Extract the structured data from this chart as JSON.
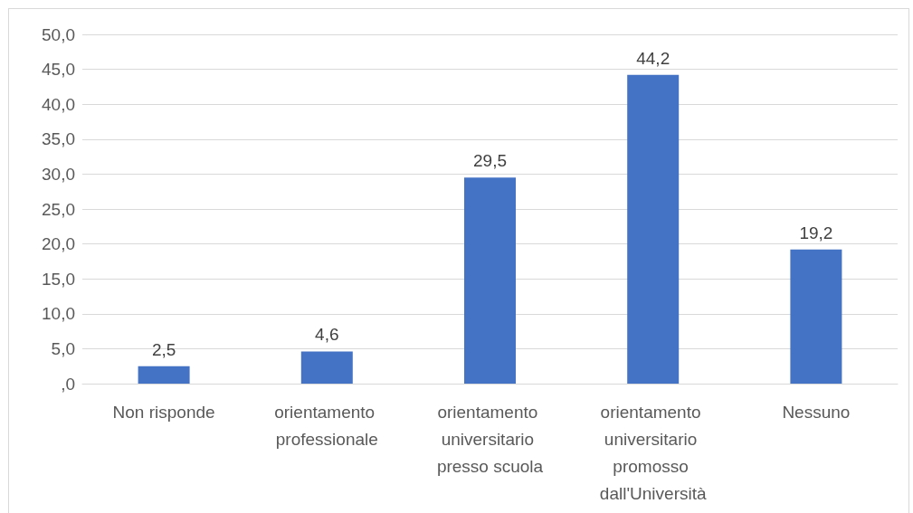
{
  "chart_data": {
    "type": "bar",
    "categories": [
      "Non risponde",
      "orientamento professionale",
      "orientamento universitario presso scuola",
      "orientamento universitario promosso dall'Università",
      "Nessuno"
    ],
    "values": [
      2.5,
      4.6,
      29.5,
      44.2,
      19.2
    ],
    "value_labels": [
      "2,5",
      "4,6",
      "29,5",
      "44,2",
      "19,2"
    ],
    "color": "#4472c4",
    "ylim": [
      0,
      50
    ],
    "yticks": [
      {
        "value": 0,
        "label": ",0"
      },
      {
        "value": 5,
        "label": "5,0"
      },
      {
        "value": 10,
        "label": "10,0"
      },
      {
        "value": 15,
        "label": "15,0"
      },
      {
        "value": 20,
        "label": "20,0"
      },
      {
        "value": 25,
        "label": "25,0"
      },
      {
        "value": 30,
        "label": "30,0"
      },
      {
        "value": 35,
        "label": "35,0"
      },
      {
        "value": 40,
        "label": "40,0"
      },
      {
        "value": 45,
        "label": "45,0"
      },
      {
        "value": 50,
        "label": "50,0"
      }
    ],
    "grid": "y"
  }
}
